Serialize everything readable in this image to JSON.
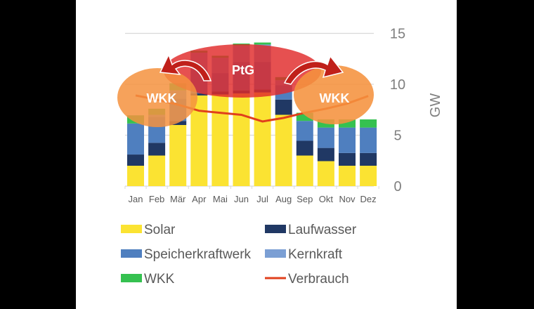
{
  "chart_data": {
    "type": "bar",
    "stacked": true,
    "categories": [
      "Jan",
      "Feb",
      "Mär",
      "Apr",
      "Mai",
      "Jun",
      "Jul",
      "Aug",
      "Sep",
      "Okt",
      "Nov",
      "Dez"
    ],
    "series": [
      {
        "name": "Solar",
        "color": "#fbe332",
        "values": [
          2,
          3,
          6,
          8.9,
          9.0,
          9.1,
          9.2,
          7,
          3,
          2.45,
          2,
          2
        ]
      },
      {
        "name": "Laufwasser",
        "color": "#203864",
        "values": [
          1.1,
          1.25,
          0.4,
          0.2,
          0.3,
          0.3,
          0.3,
          1.5,
          1.45,
          1.3,
          1.25,
          1.25
        ]
      },
      {
        "name": "Speicherkraftwerk",
        "color": "#4f7fbf",
        "values": [
          3.05,
          2.55,
          2.2,
          2.4,
          1.8,
          2.8,
          2.7,
          1.4,
          1.95,
          2.0,
          2.5,
          2.5
        ]
      },
      {
        "name": "Kernkraft",
        "color": "#7b9fd4",
        "values": [
          0,
          0.2,
          0.8,
          1.6,
          1.5,
          1.6,
          1.7,
          0.5,
          0,
          0,
          0,
          0
        ]
      },
      {
        "name": "WKK",
        "color": "#35c150",
        "values": [
          0.8,
          0.6,
          0.7,
          0.2,
          0.2,
          0.2,
          0.2,
          0.3,
          0.8,
          0.8,
          0.8,
          0.8
        ]
      }
    ],
    "line_series": {
      "name": "Verbrauch",
      "color": "#e0401c",
      "values": [
        8.9,
        8.5,
        8.0,
        7.4,
        7.2,
        7.0,
        6.35,
        6.7,
        7.2,
        7.6,
        8.1,
        8.85
      ]
    },
    "ylabel": "GW",
    "ylim": [
      0,
      15
    ],
    "yticks": [
      "0",
      "5",
      "10",
      "15"
    ],
    "y_axis_side": "right",
    "grid": true,
    "legend_placement": "bottom",
    "annotations": [
      {
        "label": "WKK",
        "shape": "ellipse",
        "color": "#f5923e"
      },
      {
        "label": "PtG",
        "shape": "ellipse",
        "color": "#e02a2a"
      },
      {
        "label": "WKK",
        "shape": "ellipse",
        "color": "#f5923e"
      }
    ]
  }
}
